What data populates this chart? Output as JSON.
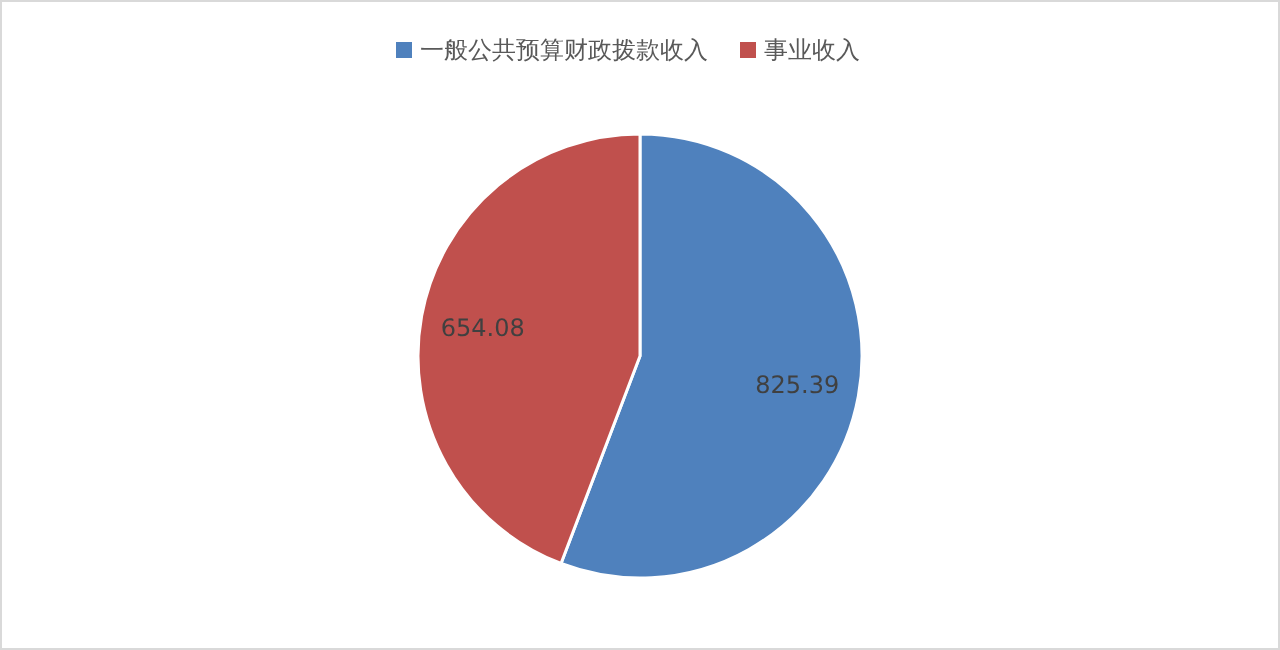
{
  "chart_data": {
    "type": "pie",
    "categories": [
      "一般公共预算财政拨款收入",
      "事业收入"
    ],
    "values": [
      825.39,
      654.08
    ],
    "colors": [
      "#4f81bd",
      "#c0504d"
    ],
    "data_labels": true,
    "legend": "top"
  }
}
